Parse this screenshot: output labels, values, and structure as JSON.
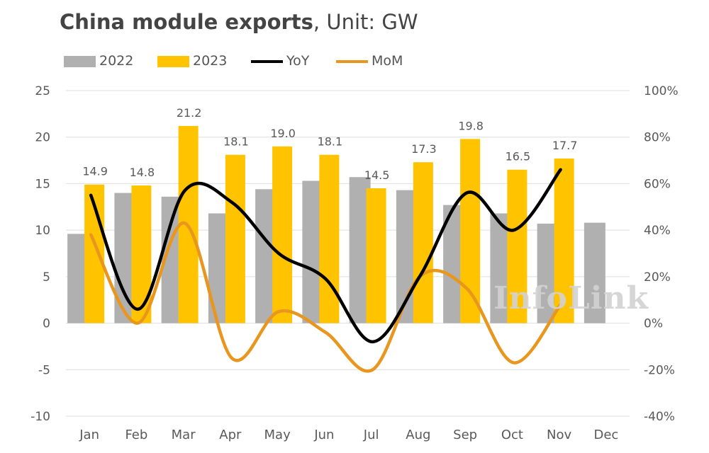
{
  "header": {
    "title_bold": "China module exports",
    "title_rest": ", Unit: GW"
  },
  "legend": {
    "items": [
      {
        "label": "2022",
        "kind": "bar",
        "color": "#b0b0b0"
      },
      {
        "label": "2023",
        "kind": "bar",
        "color": "#ffc300"
      },
      {
        "label": "YoY",
        "kind": "line",
        "color": "#000000"
      },
      {
        "label": "MoM",
        "kind": "line",
        "color": "#e8961e"
      }
    ]
  },
  "watermark": "InfoLink",
  "chart_data": {
    "type": "bar",
    "title": "China module exports, Unit: GW",
    "categories": [
      "Jan",
      "Feb",
      "Mar",
      "Apr",
      "May",
      "Jun",
      "Jul",
      "Aug",
      "Sep",
      "Oct",
      "Nov",
      "Dec"
    ],
    "left_axis": {
      "min": -10,
      "max": 25,
      "ticks": [
        25,
        20,
        15,
        10,
        5,
        0,
        -5,
        -10
      ]
    },
    "right_axis": {
      "min": -40,
      "max": 100,
      "ticks": [
        "100%",
        "80%",
        "60%",
        "40%",
        "20%",
        "0%",
        "-20%",
        "-40%"
      ]
    },
    "grid": true,
    "legend_position": "top-left",
    "series": [
      {
        "name": "2022",
        "type": "bar",
        "axis": "left",
        "color": "#b0b0b0",
        "values": [
          9.6,
          14.0,
          13.6,
          11.8,
          14.4,
          15.3,
          15.7,
          14.3,
          12.7,
          11.8,
          10.7,
          10.8
        ]
      },
      {
        "name": "2023",
        "type": "bar",
        "axis": "left",
        "color": "#ffc300",
        "values": [
          14.9,
          14.8,
          21.2,
          18.1,
          19.0,
          18.1,
          14.5,
          17.3,
          19.8,
          16.5,
          17.7,
          null
        ],
        "labels": [
          "14.9",
          "14.8",
          "21.2",
          "18.1",
          "19.0",
          "18.1",
          "14.5",
          "17.3",
          "19.8",
          "16.5",
          "17.7",
          ""
        ]
      },
      {
        "name": "YoY",
        "type": "line",
        "axis": "right",
        "color": "#000000",
        "values": [
          55,
          6,
          57,
          52,
          30,
          19,
          -8,
          20,
          56,
          40,
          66,
          null
        ]
      },
      {
        "name": "MoM",
        "type": "line",
        "axis": "right",
        "color": "#e8961e",
        "values": [
          38,
          0,
          43,
          -15,
          5,
          -4,
          -20,
          20,
          15,
          -17,
          8,
          null
        ]
      }
    ]
  }
}
